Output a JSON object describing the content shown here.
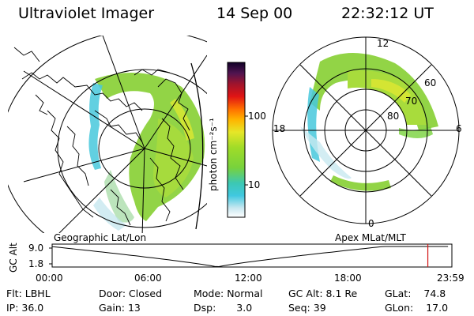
{
  "header": {
    "instrument": "Ultraviolet Imager",
    "date": "14 Sep 00",
    "time": "22:32:12 UT"
  },
  "colorbar": {
    "unit_label": "photon cm⁻²s⁻¹",
    "ticks": [
      "100",
      "10"
    ],
    "scale": "log"
  },
  "polar_plot": {
    "mlt_labels": [
      "12",
      "18",
      "6",
      "0"
    ],
    "mlat_labels": [
      "60",
      "70",
      "80"
    ]
  },
  "projection_labels": {
    "left": "Geographic Lat/Lon",
    "right": "Apex MLat/MLT"
  },
  "altitude_panel": {
    "ylabel": "GC Alt",
    "y_ticks": [
      "9.0",
      "1.8"
    ],
    "x_ticks": [
      "00:00",
      "06:00",
      "12:00",
      "18:00",
      "23:59"
    ],
    "current_time_marker_hours": 22.54
  },
  "info": {
    "flt_label": "Flt:",
    "flt_value": "LBHL",
    "ip_label": "IP:",
    "ip_value": "36.0",
    "door_label": "Door:",
    "door_value": "Closed",
    "gain_label": "Gain:",
    "gain_value": "13",
    "mode_label": "Mode:",
    "mode_value": "Normal",
    "dsp_label": "Dsp:",
    "dsp_value": "3.0",
    "gcalt_label": "GC Alt:",
    "gcalt_value": "8.1 Re",
    "seq_label": "Seq:",
    "seq_value": "39",
    "glat_label": "GLat:",
    "glat_value": "74.8",
    "glon_label": "GLon:",
    "glon_value": "17.0"
  },
  "colors": {
    "aurora_green": "#8cd23c",
    "aurora_yellow": "#d8e632",
    "aurora_cyan": "#46c8dc",
    "marker_red": "#d21414"
  }
}
